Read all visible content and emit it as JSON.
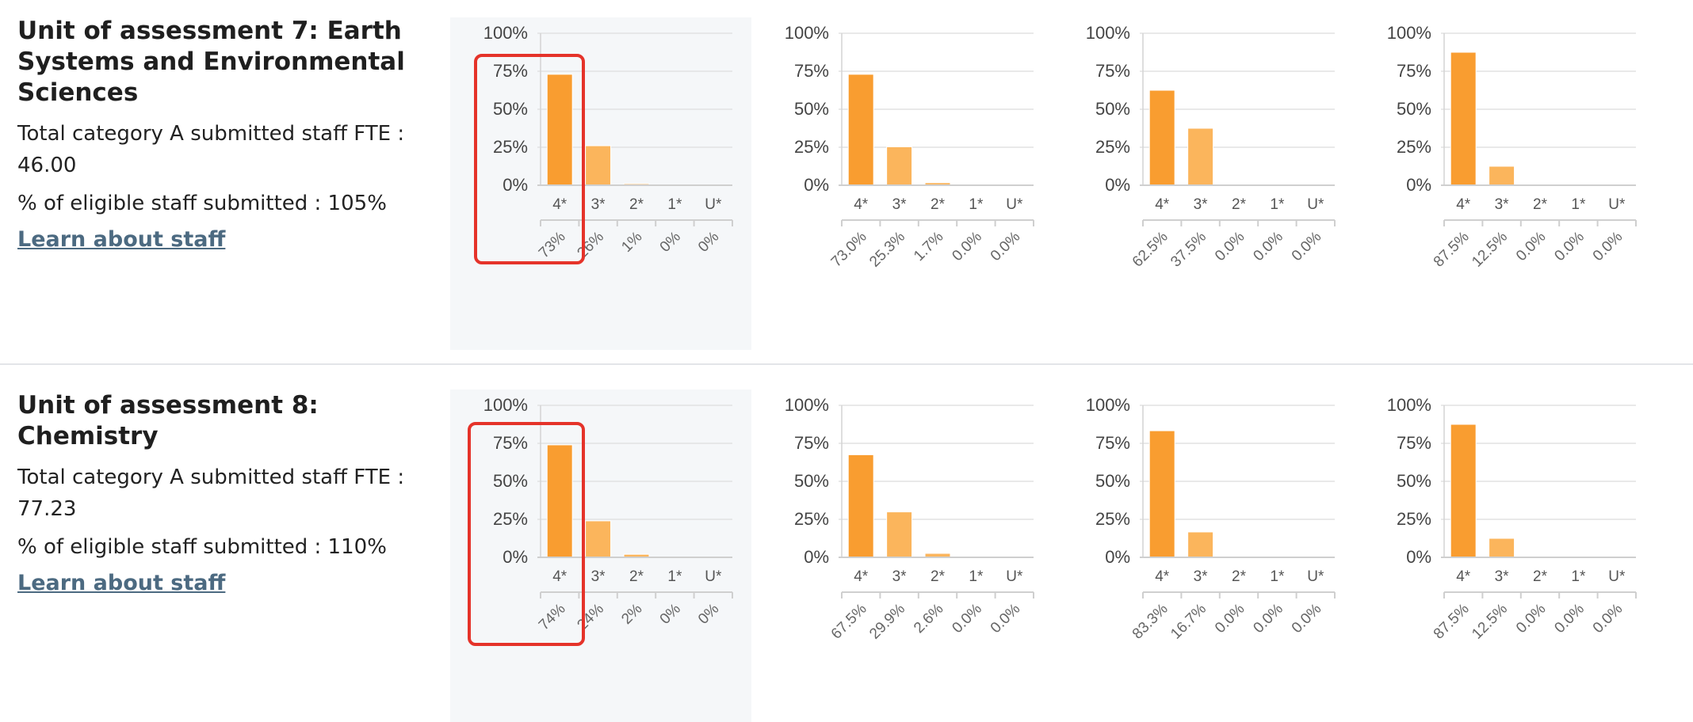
{
  "units": [
    {
      "title": "Unit of assessment 7: Earth Systems and Environmental Sciences",
      "fte_line": "Total category A submitted staff FTE : 46.00",
      "eligible_line": "% of eligible staff submitted : 105%",
      "learn_link": "Learn about staff"
    },
    {
      "title": "Unit of assessment 8: Chemistry",
      "fte_line": "Total category A submitted staff FTE : 77.23",
      "eligible_line": "% of eligible staff submitted : 110%",
      "learn_link": "Learn about staff"
    }
  ],
  "colors": {
    "bar_4star": "#f99d30",
    "bar_other": "#fbb55c",
    "highlight": "#e5332a",
    "grid": "#e2e2e2",
    "link": "#4c6a81"
  },
  "chart_data": [
    {
      "type": "bar",
      "categories": [
        "4*",
        "3*",
        "2*",
        "1*",
        "U*"
      ],
      "values": [
        73,
        26,
        1,
        0,
        0
      ],
      "value_labels": [
        "73%",
        "26%",
        "1%",
        "0%",
        "0%"
      ],
      "y_ticks": [
        "100%",
        "75%",
        "50%",
        "25%",
        "0%"
      ],
      "ylim": [
        0,
        100
      ],
      "grid": true
    },
    {
      "type": "bar",
      "categories": [
        "4*",
        "3*",
        "2*",
        "1*",
        "U*"
      ],
      "values": [
        73.0,
        25.3,
        1.7,
        0.0,
        0.0
      ],
      "value_labels": [
        "73.0%",
        "25.3%",
        "1.7%",
        "0.0%",
        "0.0%"
      ],
      "y_ticks": [
        "100%",
        "75%",
        "50%",
        "25%",
        "0%"
      ],
      "ylim": [
        0,
        100
      ],
      "grid": true
    },
    {
      "type": "bar",
      "categories": [
        "4*",
        "3*",
        "2*",
        "1*",
        "U*"
      ],
      "values": [
        62.5,
        37.5,
        0.0,
        0.0,
        0.0
      ],
      "value_labels": [
        "62.5%",
        "37.5%",
        "0.0%",
        "0.0%",
        "0.0%"
      ],
      "y_ticks": [
        "100%",
        "75%",
        "50%",
        "25%",
        "0%"
      ],
      "ylim": [
        0,
        100
      ],
      "grid": true
    },
    {
      "type": "bar",
      "categories": [
        "4*",
        "3*",
        "2*",
        "1*",
        "U*"
      ],
      "values": [
        87.5,
        12.5,
        0.0,
        0.0,
        0.0
      ],
      "value_labels": [
        "87.5%",
        "12.5%",
        "0.0%",
        "0.0%",
        "0.0%"
      ],
      "y_ticks": [
        "100%",
        "75%",
        "50%",
        "25%",
        "0%"
      ],
      "ylim": [
        0,
        100
      ],
      "grid": true
    },
    {
      "type": "bar",
      "categories": [
        "4*",
        "3*",
        "2*",
        "1*",
        "U*"
      ],
      "values": [
        74,
        24,
        2,
        0,
        0
      ],
      "value_labels": [
        "74%",
        "24%",
        "2%",
        "0%",
        "0%"
      ],
      "y_ticks": [
        "100%",
        "75%",
        "50%",
        "25%",
        "0%"
      ],
      "ylim": [
        0,
        100
      ],
      "grid": true
    },
    {
      "type": "bar",
      "categories": [
        "4*",
        "3*",
        "2*",
        "1*",
        "U*"
      ],
      "values": [
        67.5,
        29.9,
        2.6,
        0.0,
        0.0
      ],
      "value_labels": [
        "67.5%",
        "29.9%",
        "2.6%",
        "0.0%",
        "0.0%"
      ],
      "y_ticks": [
        "100%",
        "75%",
        "50%",
        "25%",
        "0%"
      ],
      "ylim": [
        0,
        100
      ],
      "grid": true
    },
    {
      "type": "bar",
      "categories": [
        "4*",
        "3*",
        "2*",
        "1*",
        "U*"
      ],
      "values": [
        83.3,
        16.7,
        0.0,
        0.0,
        0.0
      ],
      "value_labels": [
        "83.3%",
        "16.7%",
        "0.0%",
        "0.0%",
        "0.0%"
      ],
      "y_ticks": [
        "100%",
        "75%",
        "50%",
        "25%",
        "0%"
      ],
      "ylim": [
        0,
        100
      ],
      "grid": true
    },
    {
      "type": "bar",
      "categories": [
        "4*",
        "3*",
        "2*",
        "1*",
        "U*"
      ],
      "values": [
        87.5,
        12.5,
        0.0,
        0.0,
        0.0
      ],
      "value_labels": [
        "87.5%",
        "12.5%",
        "0.0%",
        "0.0%",
        "0.0%"
      ],
      "y_ticks": [
        "100%",
        "75%",
        "50%",
        "25%",
        "0%"
      ],
      "ylim": [
        0,
        100
      ],
      "grid": true
    }
  ]
}
